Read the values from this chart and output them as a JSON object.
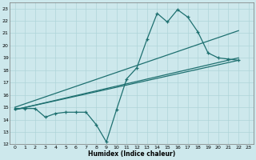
{
  "xlabel": "Humidex (Indice chaleur)",
  "bg_color": "#cde8ec",
  "grid_color": "#afd4d8",
  "line_color": "#1e7070",
  "xlim": [
    -0.5,
    23.5
  ],
  "ylim": [
    12,
    23.5
  ],
  "xticks": [
    0,
    1,
    2,
    3,
    4,
    5,
    6,
    7,
    8,
    9,
    10,
    11,
    12,
    13,
    14,
    15,
    16,
    17,
    18,
    19,
    20,
    21,
    22,
    23
  ],
  "yticks": [
    12,
    13,
    14,
    15,
    16,
    17,
    18,
    19,
    20,
    21,
    22,
    23
  ],
  "line1_x": [
    0,
    1,
    2,
    3,
    4,
    5,
    6,
    7,
    8,
    9,
    10,
    11,
    12,
    13,
    14,
    15,
    16,
    17,
    18,
    19,
    20,
    21,
    22
  ],
  "line1_y": [
    14.9,
    14.9,
    14.9,
    14.2,
    14.5,
    14.6,
    14.6,
    14.6,
    13.6,
    12.2,
    14.8,
    17.3,
    18.2,
    20.5,
    22.6,
    21.9,
    22.9,
    22.3,
    21.1,
    19.4,
    19.0,
    18.9,
    18.8
  ],
  "trend1_x": [
    0,
    22
  ],
  "trend1_y": [
    14.8,
    19.0
  ],
  "trend2_x": [
    0,
    22
  ],
  "trend2_y": [
    14.8,
    18.8
  ],
  "trend3_x": [
    0,
    22
  ],
  "trend3_y": [
    15.0,
    21.2
  ]
}
